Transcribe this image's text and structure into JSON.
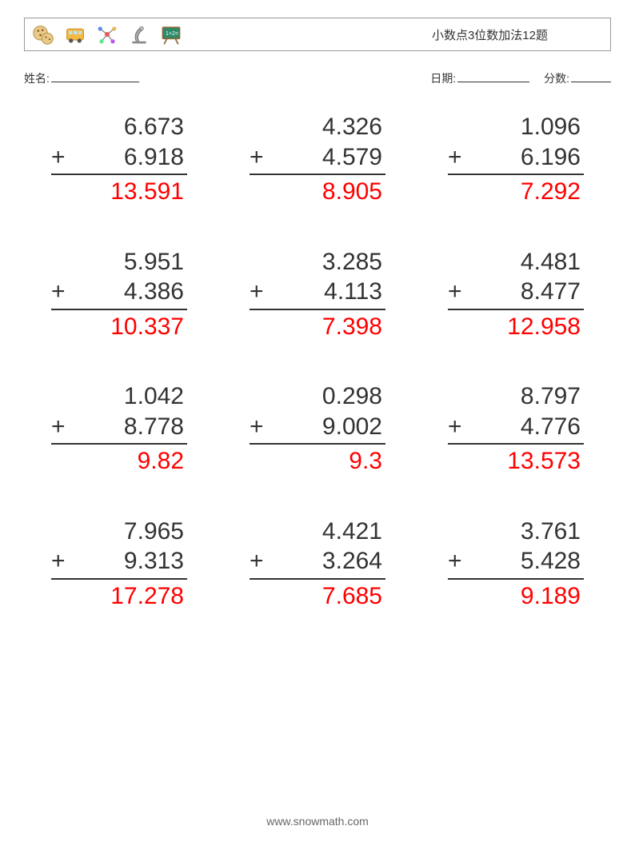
{
  "header": {
    "title": "小数点3位数加法12题",
    "icons": [
      "cookies-icon",
      "bus-icon",
      "molecule-icon",
      "microscope-icon",
      "chalkboard-icon"
    ]
  },
  "meta": {
    "name_label": "姓名:",
    "date_label": "日期:",
    "score_label": "分数:"
  },
  "style": {
    "answer_color": "#ff0000",
    "text_color": "#333333",
    "number_fontsize": 30,
    "border_color": "#333333",
    "background": "#ffffff",
    "grid_cols": 3,
    "grid_rows": 4
  },
  "problems": [
    {
      "a": "6.673",
      "b": "6.918",
      "ans": "13.591"
    },
    {
      "a": "4.326",
      "b": "4.579",
      "ans": "8.905"
    },
    {
      "a": "1.096",
      "b": "6.196",
      "ans": "7.292"
    },
    {
      "a": "5.951",
      "b": "4.386",
      "ans": "10.337"
    },
    {
      "a": "3.285",
      "b": "4.113",
      "ans": "7.398"
    },
    {
      "a": "4.481",
      "b": "8.477",
      "ans": "12.958"
    },
    {
      "a": "1.042",
      "b": "8.778",
      "ans": "9.82"
    },
    {
      "a": "0.298",
      "b": "9.002",
      "ans": "9.3"
    },
    {
      "a": "8.797",
      "b": "4.776",
      "ans": "13.573"
    },
    {
      "a": "7.965",
      "b": "9.313",
      "ans": "17.278"
    },
    {
      "a": "4.421",
      "b": "3.264",
      "ans": "7.685"
    },
    {
      "a": "3.761",
      "b": "5.428",
      "ans": "9.189"
    }
  ],
  "operator": "+",
  "footer": "www.snowmath.com"
}
